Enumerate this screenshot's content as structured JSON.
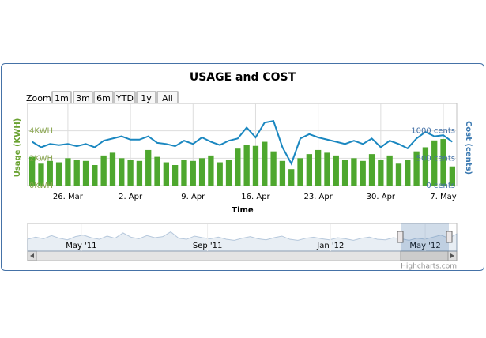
{
  "chart_data": {
    "type": "bar-line",
    "title": "USAGE and COST",
    "zoom_label": "Zoom",
    "zoom_buttons": [
      "1m",
      "3m",
      "6m",
      "YTD",
      "1y",
      "All"
    ],
    "x_title": "Time",
    "y_title": "Usage (KWH)",
    "y2_title": "Cost (cents)",
    "categories": [
      null,
      null,
      null,
      null,
      "26. Mar",
      null,
      null,
      null,
      null,
      null,
      null,
      "2. Apr",
      null,
      null,
      null,
      null,
      null,
      null,
      "9. Apr",
      null,
      null,
      null,
      null,
      null,
      null,
      "16. Apr",
      null,
      null,
      null,
      null,
      null,
      null,
      "23. Apr",
      null,
      null,
      null,
      null,
      null,
      null,
      "30. Apr",
      null,
      null,
      null,
      null,
      null,
      null,
      "7. May",
      null
    ],
    "ylim": [
      0,
      6
    ],
    "yticks": [
      {
        "value": 0,
        "label": "0KWH"
      },
      {
        "value": 2,
        "label": "2KWH"
      },
      {
        "value": 4,
        "label": "4KWH"
      }
    ],
    "y2lim": [
      0,
      1500
    ],
    "y2ticks": [
      {
        "value": 0,
        "label": "0 cents"
      },
      {
        "value": 500,
        "label": "500 cents"
      },
      {
        "value": 1000,
        "label": "1000 cents"
      }
    ],
    "grid": true,
    "series": [
      {
        "type": "bar",
        "color": "#4ea72e",
        "values": [
          2.1,
          1.6,
          1.8,
          1.7,
          2.0,
          1.9,
          1.8,
          1.5,
          2.2,
          2.4,
          2.0,
          1.9,
          1.8,
          2.6,
          2.1,
          1.7,
          1.5,
          1.9,
          1.8,
          2.0,
          2.2,
          1.7,
          1.9,
          2.7,
          3.0,
          2.9,
          3.2,
          2.5,
          1.8,
          1.2,
          2.0,
          2.3,
          2.6,
          2.4,
          2.2,
          1.9,
          2.0,
          1.8,
          2.3,
          1.9,
          2.2,
          1.6,
          1.9,
          2.5,
          2.8,
          3.3,
          3.4,
          1.4
        ]
      },
      {
        "type": "line",
        "axis": "y2",
        "color": "#1a87c0",
        "values": [
          800,
          700,
          760,
          740,
          760,
          720,
          760,
          700,
          820,
          860,
          900,
          840,
          840,
          900,
          780,
          760,
          720,
          820,
          760,
          880,
          800,
          740,
          820,
          860,
          1060,
          880,
          1150,
          1180,
          700,
          400,
          860,
          940,
          880,
          840,
          800,
          760,
          820,
          760,
          860,
          700,
          820,
          760,
          680,
          860,
          980,
          900,
          920,
          800
        ]
      }
    ],
    "navigator": {
      "color": "#4572a7",
      "xlim": [
        0,
        13.6
      ],
      "ylim": [
        0,
        5
      ],
      "xticks": [
        {
          "value": 1.7,
          "label": "May '11"
        },
        {
          "value": 5.7,
          "label": "Sep '11"
        },
        {
          "value": 9.6,
          "label": "Jan '12"
        },
        {
          "value": 12.6,
          "label": "May '12"
        }
      ],
      "values": [
        2.2,
        2.6,
        2.3,
        2.9,
        2.4,
        2.1,
        2.7,
        3.0,
        2.5,
        2.2,
        2.8,
        2.4,
        3.4,
        2.6,
        2.3,
        2.9,
        2.5,
        2.7,
        3.6,
        2.4,
        2.2,
        2.8,
        2.5,
        2.3,
        2.6,
        2.2,
        2.0,
        2.4,
        2.7,
        2.3,
        2.1,
        2.5,
        2.8,
        2.2,
        2.0,
        2.4,
        2.6,
        2.3,
        2.1,
        2.5,
        2.3,
        2.0,
        2.4,
        2.6,
        2.2,
        2.1,
        2.5,
        2.3,
        2.0,
        2.4,
        2.2,
        2.6,
        3.0,
        2.4,
        3.2
      ]
    },
    "credit": "Highcharts.com"
  }
}
